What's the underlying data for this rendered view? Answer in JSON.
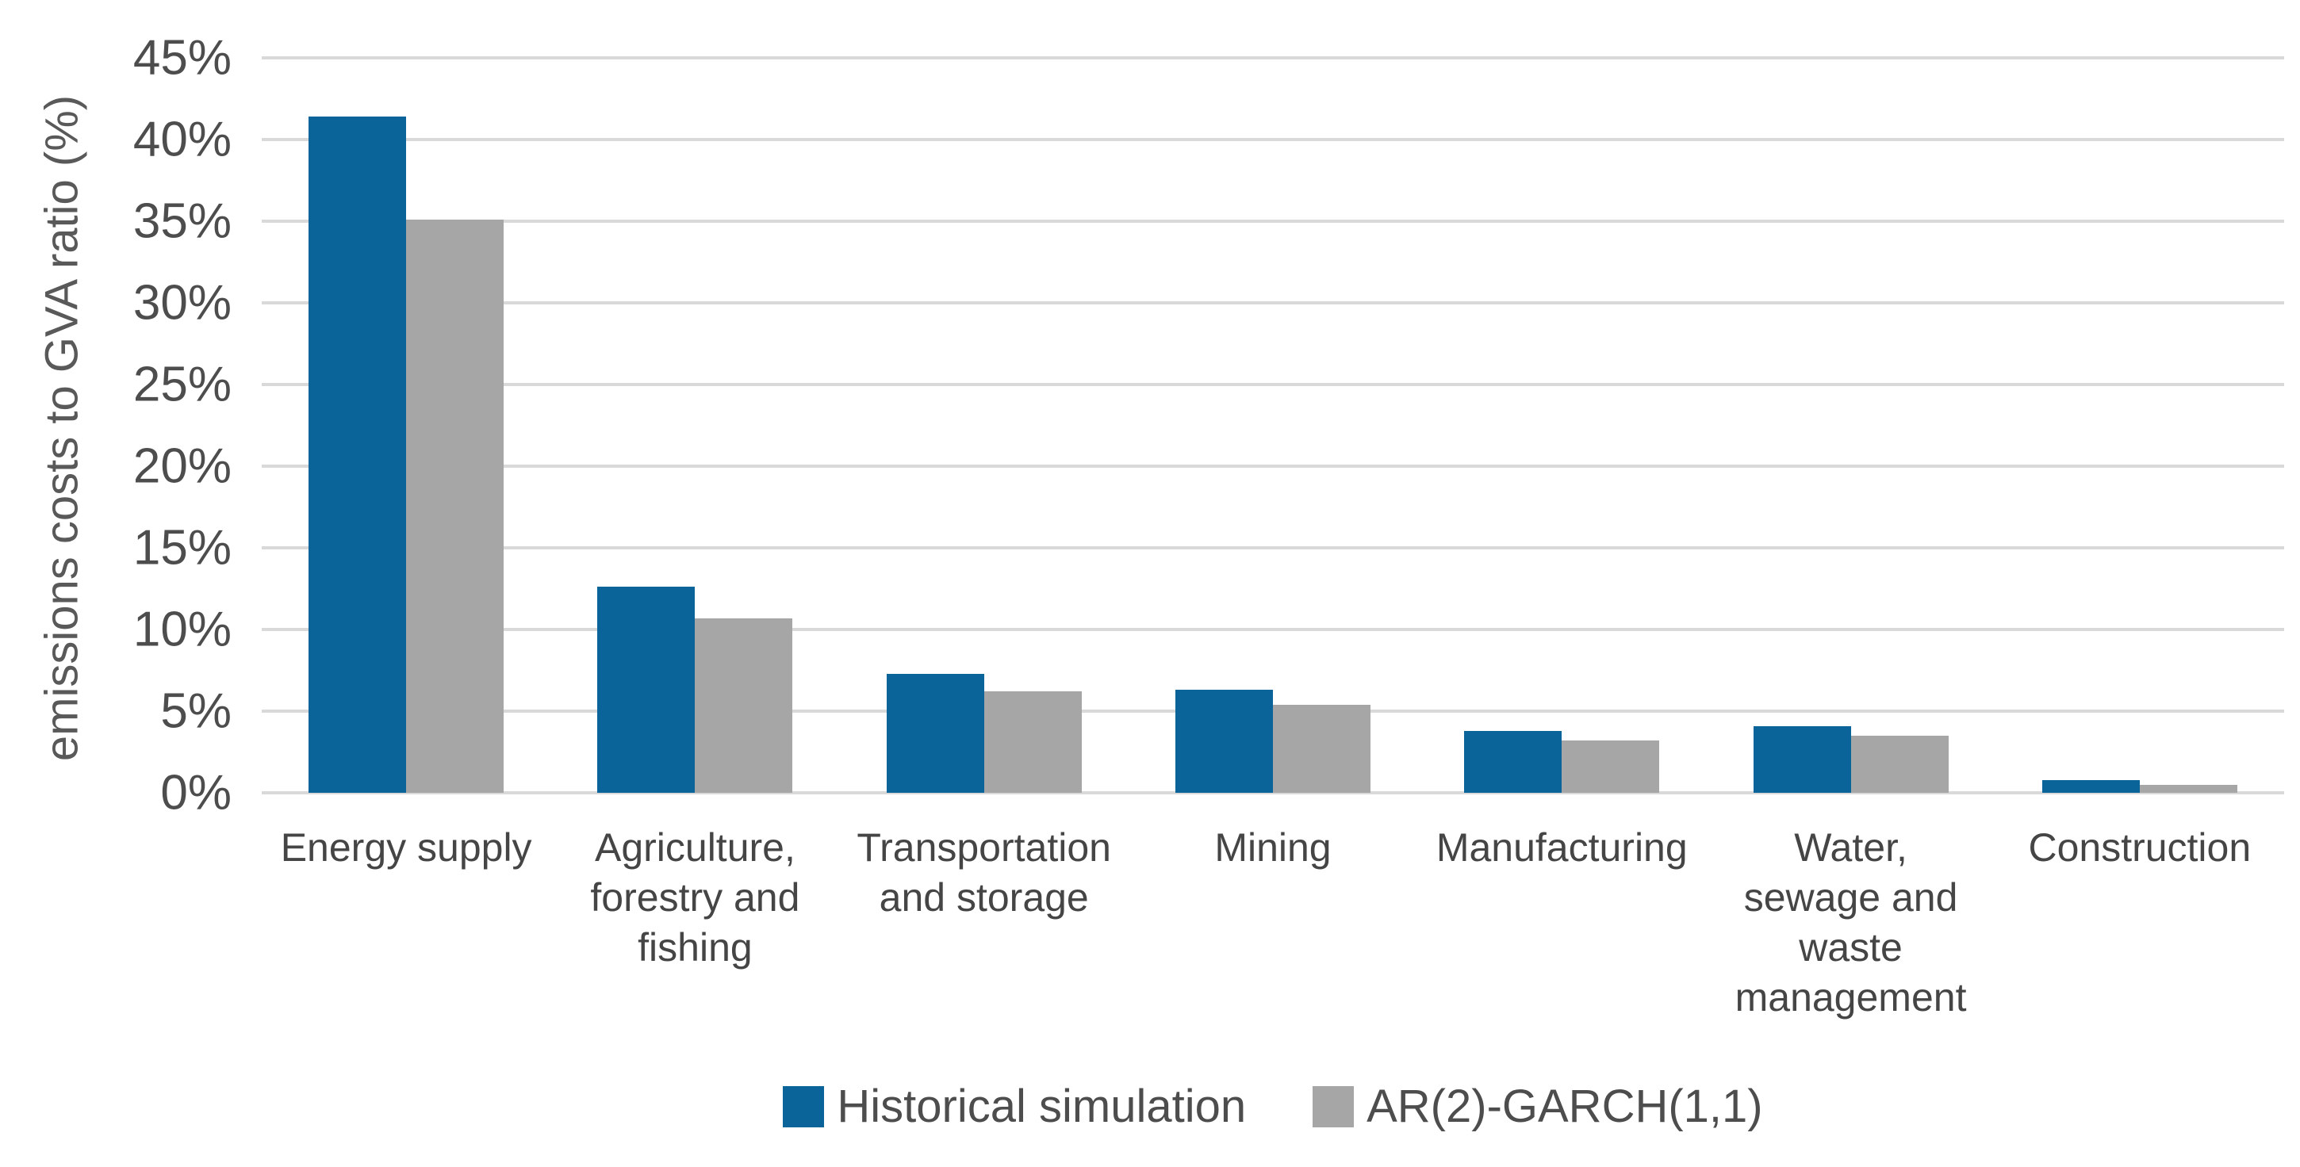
{
  "chart_data": {
    "type": "bar",
    "title": "",
    "xlabel": "",
    "ylabel": "emissions costs to GVA ratio (%)",
    "ylim": [
      0,
      45
    ],
    "ytick_step": 5,
    "ytick_labels": [
      "0%",
      "5%",
      "10%",
      "15%",
      "20%",
      "25%",
      "30%",
      "35%",
      "40%",
      "45%"
    ],
    "grid": true,
    "legend_position": "bottom",
    "categories": [
      "Energy supply",
      "Agriculture,\nforestry and\nfishing",
      "Transportation\nand storage",
      "Mining",
      "Manufacturing",
      "Water,\nsewage and\nwaste\nmanagement",
      "Construction"
    ],
    "series": [
      {
        "name": "Historical simulation",
        "color": "#0a6399",
        "values": [
          41.4,
          12.6,
          7.3,
          6.3,
          3.8,
          4.1,
          0.8
        ]
      },
      {
        "name": "AR(2)-GARCH(1,1)",
        "color": "#a6a6a6",
        "values": [
          35.1,
          10.7,
          6.2,
          5.4,
          3.2,
          3.5,
          0.5
        ]
      }
    ]
  },
  "colors": {
    "gridline": "#d9d9d9",
    "tick_text": "#4d4d4d",
    "axis_title_text": "#595959",
    "background": "#ffffff"
  }
}
